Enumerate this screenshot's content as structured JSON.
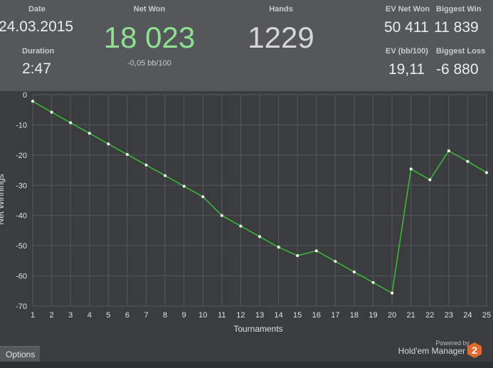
{
  "stats": {
    "date_label": "Date",
    "date_value": "24.03.2015",
    "duration_label": "Duration",
    "duration_value": "2:47",
    "net_won_label": "Net Won",
    "net_won_value": "18 023",
    "net_won_sub": "-0,05 bb/100",
    "hands_label": "Hands",
    "hands_value": "1229",
    "ev_net_won_label": "EV Net Won",
    "ev_net_won_value": "50 411",
    "biggest_win_label": "Biggest Win",
    "biggest_win_value": "11 839",
    "ev_bb_label": "EV (bb/100)",
    "ev_bb_value": "19,11",
    "biggest_loss_label": "Biggest Loss",
    "biggest_loss_value": "-6 880"
  },
  "colors": {
    "net_won": "#8fe08f",
    "line": "#3ab53a",
    "point": "#ffffff"
  },
  "footer": {
    "options_label": "Options",
    "powered_by": "Powered by",
    "brand": "Hold'em Manager",
    "logo_text": "2"
  },
  "chart_data": {
    "type": "line",
    "xlabel": "Tournaments",
    "ylabel": "Net Winnings",
    "xlim": [
      1,
      25
    ],
    "ylim": [
      -70,
      0
    ],
    "x_ticks": [
      1,
      2,
      3,
      4,
      5,
      6,
      7,
      8,
      9,
      10,
      11,
      12,
      13,
      14,
      15,
      16,
      17,
      18,
      19,
      20,
      21,
      22,
      23,
      24,
      25
    ],
    "y_ticks": [
      0,
      -10,
      -20,
      -30,
      -40,
      -50,
      -60,
      -70
    ],
    "grid": true,
    "series": [
      {
        "x": [
          1,
          2,
          3,
          4,
          5,
          6,
          7,
          8,
          9,
          10,
          11,
          12,
          13,
          14,
          15,
          16,
          17,
          18,
          19,
          20,
          21,
          22,
          23,
          24,
          25
        ],
        "values": [
          -2.2,
          -5.8,
          -9.3,
          -12.8,
          -16.3,
          -19.8,
          -23.3,
          -26.8,
          -30.3,
          -33.8,
          -40.0,
          -43.5,
          -47.0,
          -50.5,
          -53.3,
          -51.7,
          -55.2,
          -58.7,
          -62.2,
          -65.7,
          -24.6,
          -28.2,
          -18.6,
          -22.1,
          -25.8
        ]
      }
    ]
  }
}
